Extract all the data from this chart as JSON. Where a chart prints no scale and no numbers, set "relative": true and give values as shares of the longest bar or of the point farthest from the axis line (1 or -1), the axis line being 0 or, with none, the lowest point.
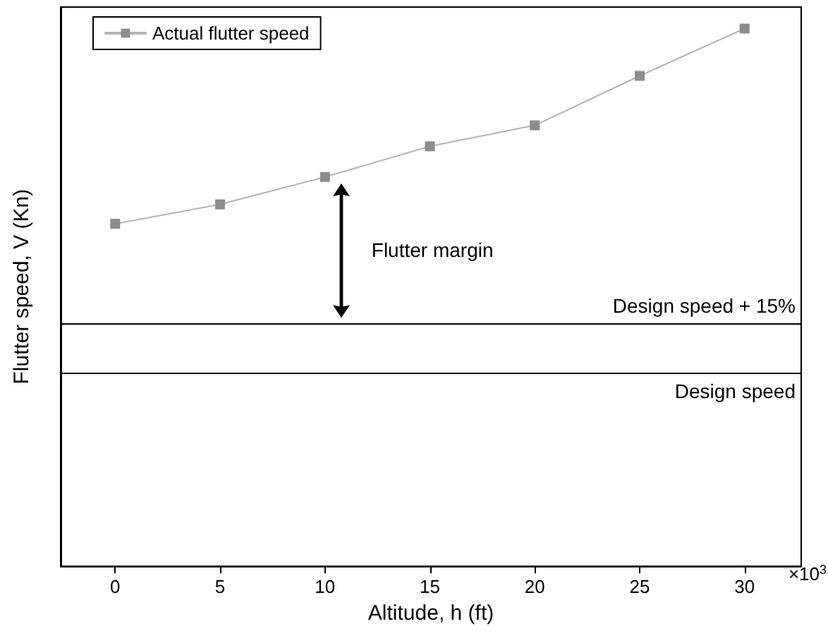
{
  "chart_data": {
    "type": "line",
    "relative": true,
    "xlabel": "Altitude, h (ft)",
    "ylabel": "Flutter speed, V (Kn)",
    "x": [
      0,
      5,
      10,
      15,
      20,
      25,
      30
    ],
    "xlim": [
      -2.6,
      32.7
    ],
    "xticks": [
      0,
      5,
      10,
      15,
      20,
      25,
      30
    ],
    "series": [
      {
        "name": "Actual flutter speed",
        "color": "#8c8c8c",
        "values": [
          0.637,
          0.673,
          0.724,
          0.781,
          0.82,
          0.912,
          1
        ]
      }
    ],
    "ref_lines": [
      {
        "axis": "y",
        "value": 0.448,
        "label": "Design speed + 15%",
        "color": "#000000"
      },
      {
        "axis": "y",
        "value": 0.358,
        "label": "Design speed",
        "color": "#000000"
      }
    ],
    "annotations": [
      "Flutter margin",
      "×10$^{3}$"
    ],
    "legend": "top left",
    "marker": "square",
    "line_style": "solid",
    "grid": false
  }
}
